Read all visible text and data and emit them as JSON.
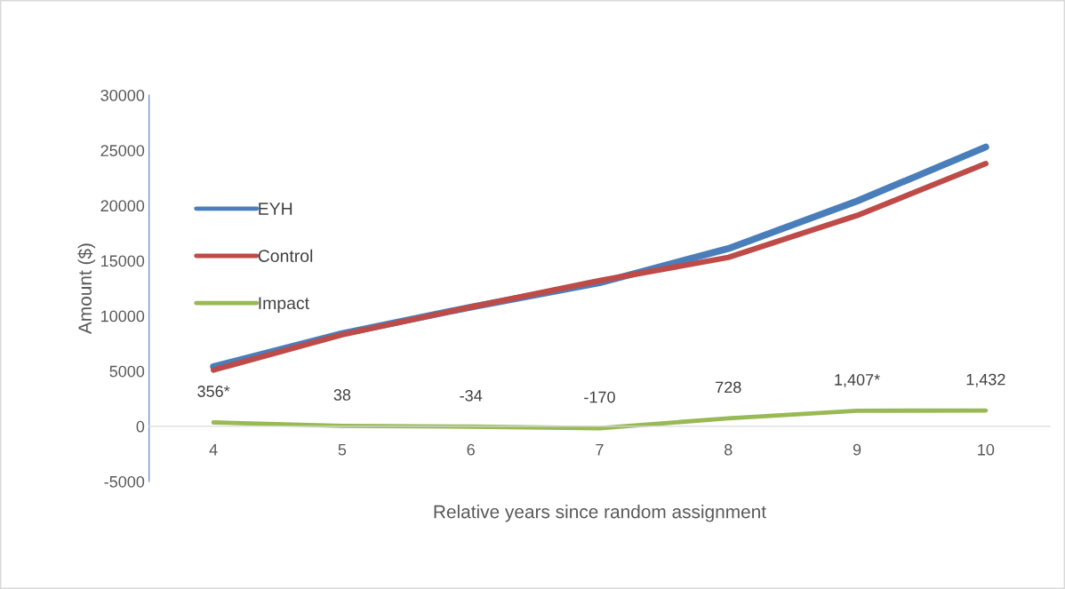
{
  "chart_data": {
    "type": "line",
    "xlabel": "Relative years since random assignment",
    "ylabel": "Amount ($)",
    "categories": [
      "4",
      "5",
      "6",
      "7",
      "8",
      "9",
      "10"
    ],
    "series": [
      {
        "name": "EYH",
        "color": "#4a7ebb",
        "values": [
          5400,
          8400,
          10800,
          13000,
          16100,
          20400,
          25300
        ]
      },
      {
        "name": "Control",
        "color": "#be4b48",
        "values": [
          5100,
          8300,
          10800,
          13200,
          15300,
          19100,
          23800
        ]
      },
      {
        "name": "Impact",
        "color": "#98b954",
        "values": [
          356,
          38,
          -34,
          -170,
          728,
          1407,
          1432
        ],
        "value_labels": [
          "356*",
          "38",
          "-34",
          "-170",
          "728",
          "1,407*",
          "1,432"
        ]
      }
    ],
    "ylim": [
      -5000,
      30000
    ],
    "yticks": [
      -5000,
      0,
      5000,
      10000,
      15000,
      20000,
      25000,
      30000
    ],
    "grid": false,
    "legend": "left",
    "marker": "none",
    "line_style": "solid"
  }
}
